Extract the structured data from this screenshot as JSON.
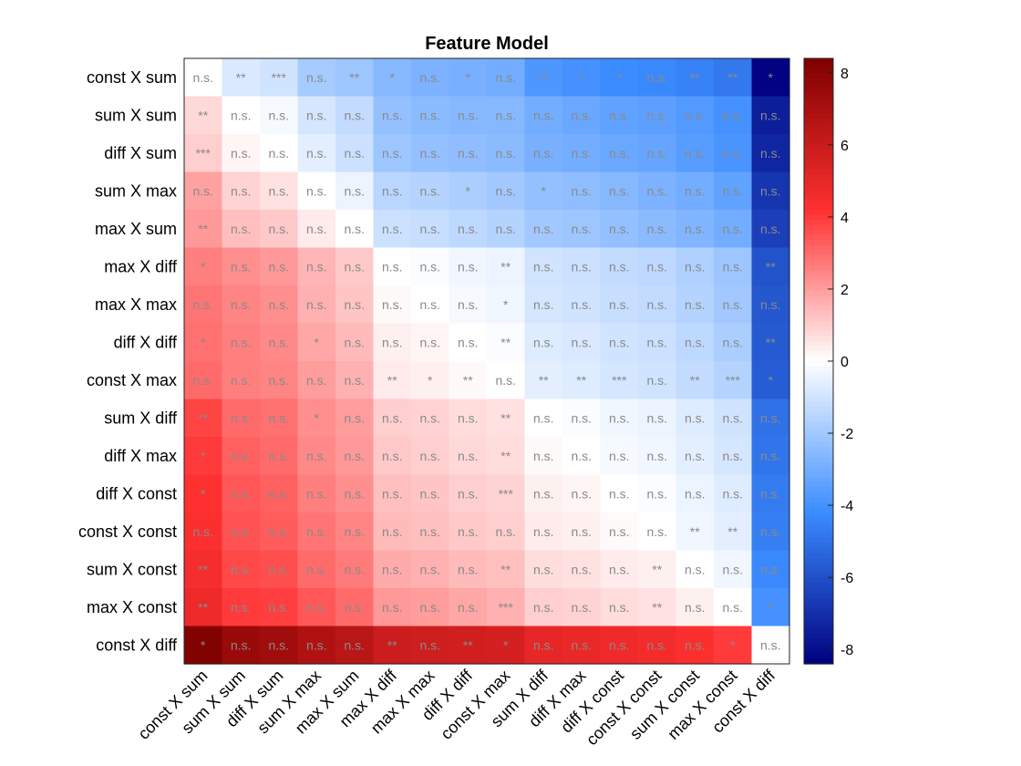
{
  "chart_data": {
    "type": "heatmap",
    "title": "Feature Model",
    "row_labels": [
      "const X sum",
      "sum X sum",
      "diff X sum",
      "sum X max",
      "max X sum",
      "max X diff",
      "max X max",
      "diff X diff",
      "const X max",
      "sum X diff",
      "diff X max",
      "diff X const",
      "const X const",
      "sum X const",
      "max X const",
      "const X diff"
    ],
    "col_labels": [
      "const X sum",
      "sum X sum",
      "diff X sum",
      "sum X max",
      "max X sum",
      "max X diff",
      "max X max",
      "diff X diff",
      "const X max",
      "sum X diff",
      "diff X max",
      "diff X const",
      "const X const",
      "sum X const",
      "max X const",
      "const X diff"
    ],
    "values": [
      [
        0,
        -0.8,
        -1.0,
        -1.9,
        -2.1,
        -2.6,
        -2.8,
        -2.9,
        -3.0,
        -3.8,
        -4.0,
        -4.2,
        -4.3,
        -4.5,
        -4.8,
        -8.3
      ],
      [
        0.8,
        0,
        -0.2,
        -0.9,
        -1.3,
        -2.3,
        -2.5,
        -2.6,
        -2.6,
        -3.0,
        -3.2,
        -3.4,
        -3.5,
        -3.7,
        -4.0,
        -7.5
      ],
      [
        1.0,
        0.2,
        0,
        -0.6,
        -1.1,
        -2.1,
        -2.3,
        -2.4,
        -2.5,
        -2.9,
        -3.0,
        -3.2,
        -3.3,
        -3.6,
        -3.9,
        -7.3
      ],
      [
        1.9,
        0.9,
        0.6,
        0,
        -0.4,
        -1.5,
        -1.6,
        -1.8,
        -2.0,
        -2.3,
        -2.4,
        -2.6,
        -2.8,
        -3.0,
        -3.4,
        -6.8
      ],
      [
        2.1,
        1.3,
        1.1,
        0.4,
        0,
        -1.1,
        -1.2,
        -1.4,
        -1.6,
        -2.0,
        -2.1,
        -2.3,
        -2.5,
        -2.7,
        -3.0,
        -6.5
      ],
      [
        2.6,
        2.3,
        2.1,
        1.5,
        1.1,
        0,
        -0.1,
        -0.3,
        -0.4,
        -1.0,
        -1.1,
        -1.3,
        -1.4,
        -1.7,
        -2.1,
        -5.9
      ],
      [
        2.8,
        2.5,
        2.3,
        1.6,
        1.2,
        0.1,
        0,
        -0.2,
        -0.3,
        -0.9,
        -1.0,
        -1.2,
        -1.3,
        -1.6,
        -2.0,
        -5.8
      ],
      [
        2.9,
        2.6,
        2.4,
        1.8,
        1.4,
        0.3,
        0.2,
        0,
        -0.1,
        -0.7,
        -0.8,
        -1.0,
        -1.1,
        -1.4,
        -1.8,
        -5.7
      ],
      [
        3.0,
        2.6,
        2.5,
        2.0,
        1.6,
        0.4,
        0.3,
        0.1,
        0,
        -0.6,
        -0.7,
        -0.9,
        -1.0,
        -1.3,
        -1.6,
        -5.6
      ],
      [
        3.8,
        3.0,
        2.9,
        2.3,
        2.0,
        1.0,
        0.9,
        0.7,
        0.6,
        0,
        -0.1,
        -0.3,
        -0.4,
        -0.7,
        -1.0,
        -5.0
      ],
      [
        4.0,
        3.2,
        3.0,
        2.4,
        2.1,
        1.1,
        1.0,
        0.8,
        0.7,
        0.1,
        0,
        -0.2,
        -0.3,
        -0.6,
        -0.9,
        -4.9
      ],
      [
        4.2,
        3.4,
        3.2,
        2.6,
        2.3,
        1.3,
        1.2,
        1.0,
        0.9,
        0.3,
        0.2,
        0,
        -0.1,
        -0.4,
        -0.7,
        -4.7
      ],
      [
        4.3,
        3.5,
        3.3,
        2.8,
        2.5,
        1.4,
        1.3,
        1.1,
        1.0,
        0.4,
        0.3,
        0.1,
        0,
        -0.3,
        -0.6,
        -4.6
      ],
      [
        4.5,
        3.7,
        3.6,
        3.0,
        2.7,
        1.7,
        1.6,
        1.4,
        1.3,
        0.7,
        0.6,
        0.4,
        0.3,
        0,
        -0.3,
        -4.3
      ],
      [
        4.8,
        4.0,
        3.9,
        3.4,
        3.0,
        2.1,
        2.0,
        1.8,
        1.6,
        1.0,
        0.9,
        0.7,
        0.6,
        0.3,
        0,
        -4.0
      ],
      [
        8.3,
        7.5,
        7.3,
        6.8,
        6.5,
        5.9,
        5.8,
        5.7,
        5.6,
        5.0,
        4.9,
        4.7,
        4.6,
        4.3,
        4.0,
        0
      ]
    ],
    "significance": [
      [
        "n.s.",
        "**",
        "***",
        "n.s.",
        "**",
        "*",
        "n.s.",
        "*",
        "n.s.",
        "**",
        "*",
        "*",
        "n.s.",
        "**",
        "**",
        "*"
      ],
      [
        "**",
        "n.s.",
        "n.s.",
        "n.s.",
        "n.s.",
        "n.s.",
        "n.s.",
        "n.s.",
        "n.s.",
        "n.s.",
        "n.s.",
        "n.s.",
        "n.s.",
        "n.s.",
        "n.s.",
        "n.s."
      ],
      [
        "***",
        "n.s.",
        "n.s.",
        "n.s.",
        "n.s.",
        "n.s.",
        "n.s.",
        "n.s.",
        "n.s.",
        "n.s.",
        "n.s.",
        "n.s.",
        "n.s.",
        "n.s.",
        "n.s.",
        "n.s."
      ],
      [
        "n.s.",
        "n.s.",
        "n.s.",
        "n.s.",
        "n.s.",
        "n.s.",
        "n.s.",
        "*",
        "n.s.",
        "*",
        "n.s.",
        "n.s.",
        "n.s.",
        "n.s.",
        "n.s.",
        "n.s."
      ],
      [
        "**",
        "n.s.",
        "n.s.",
        "n.s.",
        "n.s.",
        "n.s.",
        "n.s.",
        "n.s.",
        "n.s.",
        "n.s.",
        "n.s.",
        "n.s.",
        "n.s.",
        "n.s.",
        "n.s.",
        "n.s."
      ],
      [
        "*",
        "n.s.",
        "n.s.",
        "n.s.",
        "n.s.",
        "n.s.",
        "n.s.",
        "n.s.",
        "**",
        "n.s.",
        "n.s.",
        "n.s.",
        "n.s.",
        "n.s.",
        "n.s.",
        "**"
      ],
      [
        "n.s.",
        "n.s.",
        "n.s.",
        "n.s.",
        "n.s.",
        "n.s.",
        "n.s.",
        "n.s.",
        "*",
        "n.s.",
        "n.s.",
        "n.s.",
        "n.s.",
        "n.s.",
        "n.s.",
        "n.s."
      ],
      [
        "*",
        "n.s.",
        "n.s.",
        "*",
        "n.s.",
        "n.s.",
        "n.s.",
        "n.s.",
        "**",
        "n.s.",
        "n.s.",
        "n.s.",
        "n.s.",
        "n.s.",
        "n.s.",
        "**"
      ],
      [
        "n.s.",
        "n.s.",
        "n.s.",
        "n.s.",
        "n.s.",
        "**",
        "*",
        "**",
        "n.s.",
        "**",
        "**",
        "***",
        "n.s.",
        "**",
        "***",
        "*"
      ],
      [
        "**",
        "n.s.",
        "n.s.",
        "*",
        "n.s.",
        "n.s.",
        "n.s.",
        "n.s.",
        "**",
        "n.s.",
        "n.s.",
        "n.s.",
        "n.s.",
        "n.s.",
        "n.s.",
        "n.s."
      ],
      [
        "*",
        "n.s.",
        "n.s.",
        "n.s.",
        "n.s.",
        "n.s.",
        "n.s.",
        "n.s.",
        "**",
        "n.s.",
        "n.s.",
        "n.s.",
        "n.s.",
        "n.s.",
        "n.s.",
        "n.s."
      ],
      [
        "*",
        "n.s.",
        "n.s.",
        "n.s.",
        "n.s.",
        "n.s.",
        "n.s.",
        "n.s.",
        "***",
        "n.s.",
        "n.s.",
        "n.s.",
        "n.s.",
        "n.s.",
        "n.s.",
        "n.s."
      ],
      [
        "n.s.",
        "n.s.",
        "n.s.",
        "n.s.",
        "n.s.",
        "n.s.",
        "n.s.",
        "n.s.",
        "n.s.",
        "n.s.",
        "n.s.",
        "n.s.",
        "n.s.",
        "**",
        "**",
        "n.s."
      ],
      [
        "**",
        "n.s.",
        "n.s.",
        "n.s.",
        "n.s.",
        "n.s.",
        "n.s.",
        "n.s.",
        "**",
        "n.s.",
        "n.s.",
        "n.s.",
        "**",
        "n.s.",
        "n.s.",
        "n.s."
      ],
      [
        "**",
        "n.s.",
        "n.s.",
        "n.s.",
        "n.s.",
        "n.s.",
        "n.s.",
        "n.s.",
        "***",
        "n.s.",
        "n.s.",
        "n.s.",
        "**",
        "n.s.",
        "n.s.",
        "*"
      ],
      [
        "*",
        "n.s.",
        "n.s.",
        "n.s.",
        "n.s.",
        "**",
        "n.s.",
        "**",
        "*",
        "n.s.",
        "n.s.",
        "n.s.",
        "n.s.",
        "n.s.",
        "*",
        "n.s."
      ]
    ],
    "colorbar": {
      "min": -8.4,
      "max": 8.4,
      "ticks": [
        8,
        6,
        4,
        2,
        0,
        -2,
        -4,
        -6,
        -8
      ]
    },
    "colormap": {
      "low": "#00007f",
      "mid_low": "#3b8cff",
      "zero": "#ffffff",
      "mid_high": "#ff3030",
      "high": "#7f0000"
    }
  }
}
